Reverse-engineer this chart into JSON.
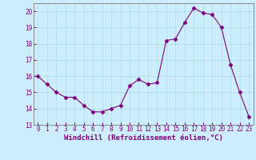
{
  "hours": [
    0,
    1,
    2,
    3,
    4,
    5,
    6,
    7,
    8,
    9,
    10,
    11,
    12,
    13,
    14,
    15,
    16,
    17,
    18,
    19,
    20,
    21,
    22,
    23
  ],
  "windchill": [
    16.0,
    15.5,
    15.0,
    14.7,
    14.7,
    14.2,
    13.8,
    13.8,
    14.0,
    14.2,
    15.4,
    15.8,
    15.5,
    15.6,
    18.2,
    18.3,
    19.3,
    20.2,
    19.9,
    19.8,
    19.0,
    16.7,
    15.0,
    13.5
  ],
  "line_color": "#800080",
  "marker": "D",
  "marker_size": 2.5,
  "bg_color": "#cceeff",
  "grid_color": "#aadddd",
  "xlabel": "Windchill (Refroidissement éolien,°C)",
  "ylim": [
    13,
    20.5
  ],
  "xlim": [
    -0.5,
    23.5
  ],
  "yticks": [
    13,
    14,
    15,
    16,
    17,
    18,
    19,
    20
  ],
  "xticks": [
    0,
    1,
    2,
    3,
    4,
    5,
    6,
    7,
    8,
    9,
    10,
    11,
    12,
    13,
    14,
    15,
    16,
    17,
    18,
    19,
    20,
    21,
    22,
    23
  ],
  "tick_color": "#800080",
  "tick_fontsize": 5.5,
  "xlabel_fontsize": 6.5
}
